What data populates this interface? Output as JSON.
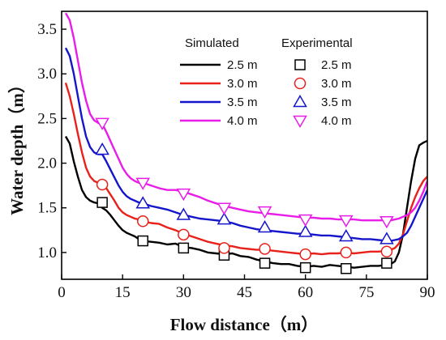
{
  "chart_data": {
    "type": "line",
    "xlabel": "Flow distance（m）",
    "ylabel": "Water depth（m）",
    "xlim": [
      0,
      90
    ],
    "ylim": [
      0.7,
      3.7
    ],
    "xticks": [
      "0",
      "15",
      "30",
      "45",
      "60",
      "75",
      "90"
    ],
    "yticks": [
      "1.0",
      "1.5",
      "2.0",
      "2.5",
      "3.0",
      "3.5"
    ],
    "grid": false,
    "legend": {
      "position": "top-right",
      "simulated_title": "Simulated",
      "experimental_title": "Experimental"
    },
    "series": [
      {
        "name": "2.5 m",
        "color": "#000000",
        "marker": "square",
        "simulated": {
          "x": [
            1,
            2,
            3,
            4,
            5,
            6,
            7,
            8,
            9,
            10,
            11,
            12,
            13,
            14,
            15,
            16,
            17,
            18,
            19,
            20,
            22,
            24,
            26,
            28,
            30,
            32,
            34,
            36,
            38,
            40,
            42,
            44,
            46,
            48,
            50,
            52,
            54,
            56,
            58,
            60,
            62,
            64,
            66,
            68,
            70,
            72,
            74,
            76,
            78,
            80,
            81,
            82,
            83,
            84,
            85,
            86,
            87,
            88,
            89,
            90
          ],
          "y": [
            2.3,
            2.22,
            2.02,
            1.85,
            1.7,
            1.62,
            1.58,
            1.56,
            1.55,
            1.5,
            1.47,
            1.42,
            1.36,
            1.3,
            1.25,
            1.22,
            1.2,
            1.18,
            1.15,
            1.13,
            1.12,
            1.11,
            1.09,
            1.1,
            1.06,
            1.05,
            1.03,
            1.0,
            0.99,
            0.98,
            0.99,
            0.96,
            0.95,
            0.92,
            0.9,
            0.88,
            0.87,
            0.87,
            0.85,
            0.84,
            0.85,
            0.84,
            0.86,
            0.85,
            0.84,
            0.83,
            0.84,
            0.85,
            0.85,
            0.86,
            0.87,
            0.9,
            1.0,
            1.2,
            1.5,
            1.8,
            2.05,
            2.2,
            2.23,
            2.25
          ]
        },
        "experimental": {
          "x": [
            10,
            20,
            30,
            40,
            50,
            60,
            70,
            80
          ],
          "y": [
            1.56,
            1.13,
            1.05,
            0.97,
            0.88,
            0.83,
            0.82,
            0.88
          ]
        }
      },
      {
        "name": "3.0 m",
        "color": "#e8211b",
        "marker": "circle",
        "simulated": {
          "x": [
            1,
            2,
            3,
            4,
            5,
            6,
            7,
            8,
            9,
            10,
            11,
            12,
            13,
            14,
            15,
            16,
            17,
            18,
            19,
            20,
            22,
            24,
            26,
            28,
            30,
            32,
            34,
            36,
            38,
            40,
            42,
            44,
            46,
            48,
            50,
            52,
            54,
            56,
            58,
            60,
            62,
            64,
            66,
            68,
            70,
            72,
            74,
            76,
            78,
            80,
            81,
            82,
            83,
            84,
            85,
            86,
            87,
            88,
            89,
            90
          ],
          "y": [
            2.9,
            2.75,
            2.55,
            2.33,
            2.12,
            1.95,
            1.85,
            1.8,
            1.78,
            1.77,
            1.72,
            1.65,
            1.58,
            1.5,
            1.45,
            1.42,
            1.4,
            1.38,
            1.37,
            1.35,
            1.33,
            1.32,
            1.28,
            1.25,
            1.21,
            1.18,
            1.15,
            1.12,
            1.1,
            1.08,
            1.07,
            1.05,
            1.04,
            1.03,
            1.03,
            1.02,
            1.01,
            1.0,
            0.99,
            0.98,
            0.99,
            0.98,
            0.99,
            0.99,
            1.0,
            0.99,
            1.0,
            1.01,
            1.01,
            1.02,
            1.03,
            1.05,
            1.1,
            1.2,
            1.35,
            1.5,
            1.62,
            1.72,
            1.8,
            1.85
          ]
        },
        "experimental": {
          "x": [
            10,
            20,
            30,
            40,
            50,
            60,
            70,
            80
          ],
          "y": [
            1.76,
            1.35,
            1.2,
            1.05,
            1.04,
            0.98,
            1.0,
            1.01
          ]
        }
      },
      {
        "name": "3.5 m",
        "color": "#1515cc",
        "marker": "triangle-up",
        "simulated": {
          "x": [
            1,
            2,
            3,
            4,
            5,
            6,
            7,
            8,
            9,
            10,
            11,
            12,
            13,
            14,
            15,
            16,
            17,
            18,
            19,
            20,
            22,
            24,
            26,
            28,
            30,
            32,
            34,
            36,
            38,
            40,
            42,
            44,
            46,
            48,
            50,
            52,
            54,
            56,
            58,
            60,
            62,
            64,
            66,
            68,
            70,
            72,
            74,
            76,
            78,
            80,
            81,
            82,
            83,
            84,
            85,
            86,
            87,
            88,
            89,
            90
          ],
          "y": [
            3.29,
            3.2,
            3.0,
            2.75,
            2.5,
            2.3,
            2.18,
            2.12,
            2.1,
            2.1,
            2.02,
            1.93,
            1.84,
            1.75,
            1.68,
            1.63,
            1.6,
            1.58,
            1.56,
            1.55,
            1.52,
            1.5,
            1.48,
            1.45,
            1.42,
            1.4,
            1.38,
            1.37,
            1.36,
            1.35,
            1.33,
            1.3,
            1.28,
            1.26,
            1.25,
            1.24,
            1.23,
            1.22,
            1.21,
            1.21,
            1.2,
            1.19,
            1.19,
            1.18,
            1.17,
            1.16,
            1.15,
            1.15,
            1.14,
            1.13,
            1.13,
            1.14,
            1.15,
            1.18,
            1.22,
            1.3,
            1.4,
            1.5,
            1.6,
            1.7
          ]
        },
        "experimental": {
          "x": [
            10,
            20,
            30,
            40,
            50,
            60,
            70,
            80
          ],
          "y": [
            2.15,
            1.55,
            1.42,
            1.37,
            1.28,
            1.23,
            1.18,
            1.15
          ]
        }
      },
      {
        "name": "4.0 m",
        "color": "#e81ee8",
        "marker": "triangle-down",
        "simulated": {
          "x": [
            1,
            2,
            3,
            4,
            5,
            6,
            7,
            8,
            9,
            10,
            11,
            12,
            13,
            14,
            15,
            16,
            17,
            18,
            19,
            20,
            22,
            24,
            26,
            28,
            30,
            32,
            34,
            36,
            38,
            40,
            42,
            44,
            46,
            48,
            50,
            52,
            54,
            56,
            58,
            60,
            62,
            64,
            66,
            68,
            70,
            72,
            74,
            76,
            78,
            80,
            81,
            82,
            83,
            84,
            85,
            86,
            87,
            88,
            89,
            90
          ],
          "y": [
            3.68,
            3.6,
            3.4,
            3.15,
            2.9,
            2.7,
            2.55,
            2.48,
            2.45,
            2.44,
            2.35,
            2.25,
            2.15,
            2.05,
            1.95,
            1.88,
            1.83,
            1.8,
            1.78,
            1.78,
            1.75,
            1.72,
            1.7,
            1.7,
            1.68,
            1.65,
            1.62,
            1.58,
            1.55,
            1.52,
            1.5,
            1.48,
            1.46,
            1.45,
            1.44,
            1.43,
            1.42,
            1.41,
            1.4,
            1.39,
            1.39,
            1.38,
            1.38,
            1.37,
            1.37,
            1.37,
            1.36,
            1.36,
            1.36,
            1.36,
            1.36,
            1.37,
            1.38,
            1.4,
            1.42,
            1.45,
            1.5,
            1.58,
            1.68,
            1.8
          ]
        },
        "experimental": {
          "x": [
            10,
            20,
            30,
            40,
            50,
            60,
            70,
            80
          ],
          "y": [
            2.45,
            1.78,
            1.66,
            1.5,
            1.46,
            1.37,
            1.36,
            1.35
          ]
        }
      }
    ]
  }
}
